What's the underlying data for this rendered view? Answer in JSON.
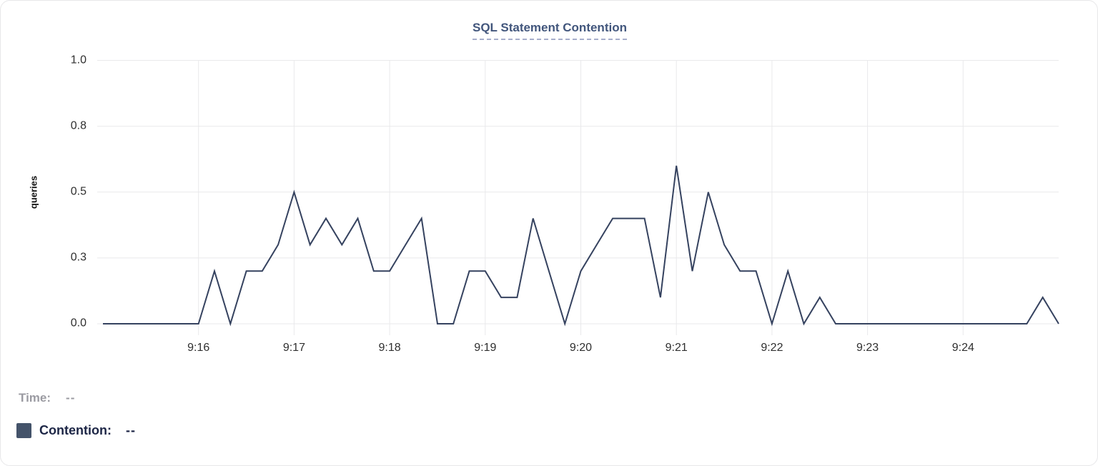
{
  "title": "SQL Statement Contention",
  "legend": {
    "time_label": "Time:",
    "time_value": "--",
    "contention_label": "Contention:",
    "contention_value": "--"
  },
  "colors": {
    "line": "#35425f",
    "swatch": "#44536a",
    "title": "#42567c",
    "title_underline": "#a6aecb",
    "tick_text": "#2f2f2f",
    "legend_muted": "#9b9ba2",
    "legend_dark": "#1d2646",
    "grid": "#e9e9eb"
  },
  "chart_data": {
    "type": "line",
    "title": "SQL Statement Contention",
    "xlabel": "",
    "ylabel": "queries",
    "ylim": [
      0,
      1.0
    ],
    "grid": true,
    "legend_position": "bottom-left",
    "y_ticks": {
      "labels": [
        "0.0",
        "0.3",
        "0.5",
        "0.8",
        "1.0"
      ],
      "values": [
        0,
        0.25,
        0.5,
        0.75,
        1.0
      ]
    },
    "x_ticks": [
      "9:16",
      "9:17",
      "9:18",
      "9:19",
      "9:20",
      "9:21",
      "9:22",
      "9:23",
      "9:24"
    ],
    "series": [
      {
        "name": "Contention",
        "x": [
          "9:15:00",
          "9:15:10",
          "9:15:20",
          "9:15:30",
          "9:15:40",
          "9:15:50",
          "9:16:00",
          "9:16:10",
          "9:16:20",
          "9:16:30",
          "9:16:40",
          "9:16:50",
          "9:17:00",
          "9:17:10",
          "9:17:20",
          "9:17:30",
          "9:17:40",
          "9:17:50",
          "9:18:00",
          "9:18:10",
          "9:18:20",
          "9:18:30",
          "9:18:40",
          "9:18:50",
          "9:19:00",
          "9:19:10",
          "9:19:20",
          "9:19:30",
          "9:19:40",
          "9:19:50",
          "9:20:00",
          "9:20:10",
          "9:20:20",
          "9:20:30",
          "9:20:40",
          "9:20:50",
          "9:21:00",
          "9:21:10",
          "9:21:20",
          "9:21:30",
          "9:21:40",
          "9:21:50",
          "9:22:00",
          "9:22:10",
          "9:22:20",
          "9:22:30",
          "9:22:40",
          "9:22:50",
          "9:23:00",
          "9:23:10",
          "9:23:20",
          "9:23:30",
          "9:23:40",
          "9:23:50",
          "9:24:00",
          "9:24:10",
          "9:24:20",
          "9:24:30",
          "9:24:40",
          "9:24:50",
          "9:25:00"
        ],
        "values": [
          0,
          0,
          0,
          0,
          0,
          0,
          0,
          0.2,
          0,
          0.2,
          0.2,
          0.3,
          0.5,
          0.3,
          0.4,
          0.3,
          0.4,
          0.2,
          0.2,
          0.3,
          0.4,
          0,
          0,
          0.2,
          0.2,
          0.1,
          0.1,
          0.4,
          0.2,
          0,
          0.2,
          0.3,
          0.4,
          0.4,
          0.4,
          0.1,
          0.6,
          0.2,
          0.5,
          0.3,
          0.2,
          0.2,
          0,
          0.2,
          0,
          0.1,
          0,
          0,
          0,
          0,
          0,
          0,
          0,
          0,
          0,
          0,
          0,
          0,
          0,
          0.1,
          0
        ]
      }
    ]
  }
}
